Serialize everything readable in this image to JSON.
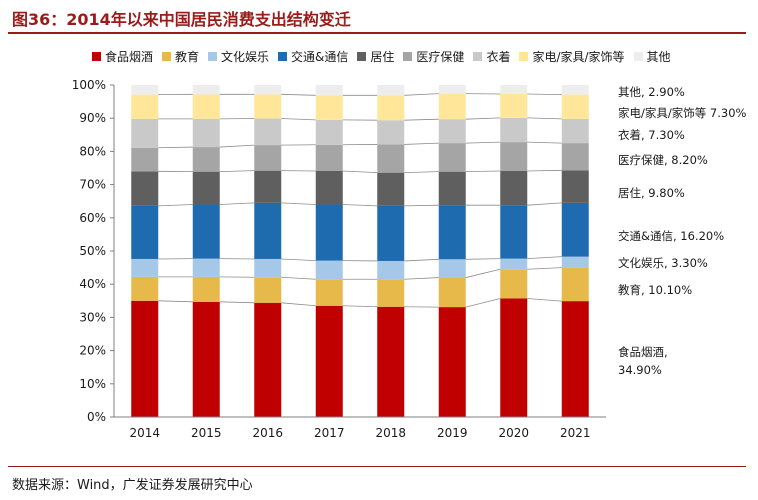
{
  "figure": {
    "title": "图36：2014年以来中国居民消费支出结构变迁",
    "source": "数据来源：Wind，广发证券发展研究中心"
  },
  "chart_data": {
    "type": "bar",
    "stacked": true,
    "percent": true,
    "categories": [
      "2014",
      "2015",
      "2016",
      "2017",
      "2018",
      "2019",
      "2020",
      "2021"
    ],
    "ylim": [
      0,
      100
    ],
    "yticks": [
      "0%",
      "10%",
      "20%",
      "30%",
      "40%",
      "50%",
      "60%",
      "70%",
      "80%",
      "90%",
      "100%"
    ],
    "series": [
      {
        "name": "食品烟酒",
        "color": "#c00000",
        "values": [
          35.0,
          34.7,
          34.4,
          33.5,
          33.2,
          33.1,
          35.7,
          34.9
        ]
      },
      {
        "name": "教育",
        "color": "#e6b94a",
        "values": [
          7.2,
          7.5,
          7.7,
          8.0,
          8.3,
          8.9,
          8.8,
          10.1
        ]
      },
      {
        "name": "文化娱乐",
        "color": "#a6c8e8",
        "values": [
          5.4,
          5.5,
          5.5,
          5.6,
          5.5,
          5.5,
          3.2,
          3.3
        ]
      },
      {
        "name": "交通&通信",
        "color": "#1f6bb0",
        "values": [
          16.0,
          16.3,
          16.9,
          16.9,
          16.6,
          16.3,
          16.1,
          16.2
        ]
      },
      {
        "name": "居住",
        "color": "#5f5f5f",
        "values": [
          10.4,
          9.9,
          9.7,
          10.1,
          10.0,
          10.1,
          10.3,
          9.8
        ]
      },
      {
        "name": "医疗保健",
        "color": "#a5a5a5",
        "values": [
          7.1,
          7.4,
          7.7,
          7.9,
          8.5,
          8.6,
          8.7,
          8.2
        ]
      },
      {
        "name": "衣着",
        "color": "#c9c9c9",
        "values": [
          8.7,
          8.5,
          8.0,
          7.5,
          7.3,
          7.2,
          7.3,
          7.3
        ]
      },
      {
        "name": "家电/家具/家饰等",
        "color": "#ffe699",
        "values": [
          7.3,
          7.4,
          7.3,
          7.4,
          7.5,
          7.7,
          7.2,
          7.3
        ]
      },
      {
        "name": "其他",
        "color": "#ededed",
        "values": [
          2.9,
          2.8,
          2.8,
          3.1,
          3.1,
          2.6,
          2.7,
          2.9
        ]
      }
    ],
    "end_labels": [
      {
        "series": "其他",
        "text": "其他, 2.90%"
      },
      {
        "series": "家电/家具/家饰等",
        "text": "家电/家具/家饰等 7.30%"
      },
      {
        "series": "衣着",
        "text": "衣着, 7.30%"
      },
      {
        "series": "医疗保健",
        "text": "医疗保健, 8.20%"
      },
      {
        "series": "居住",
        "text": "居住, 9.80%"
      },
      {
        "series": "交通&通信",
        "text": "交通&通信, 16.20%"
      },
      {
        "series": "文化娱乐",
        "text": "文化娱乐, 3.30%"
      },
      {
        "series": "教育",
        "text": "教育, 10.10%"
      },
      {
        "series": "食品烟酒",
        "text": "食品烟酒,",
        "text2": "34.90%"
      }
    ]
  }
}
